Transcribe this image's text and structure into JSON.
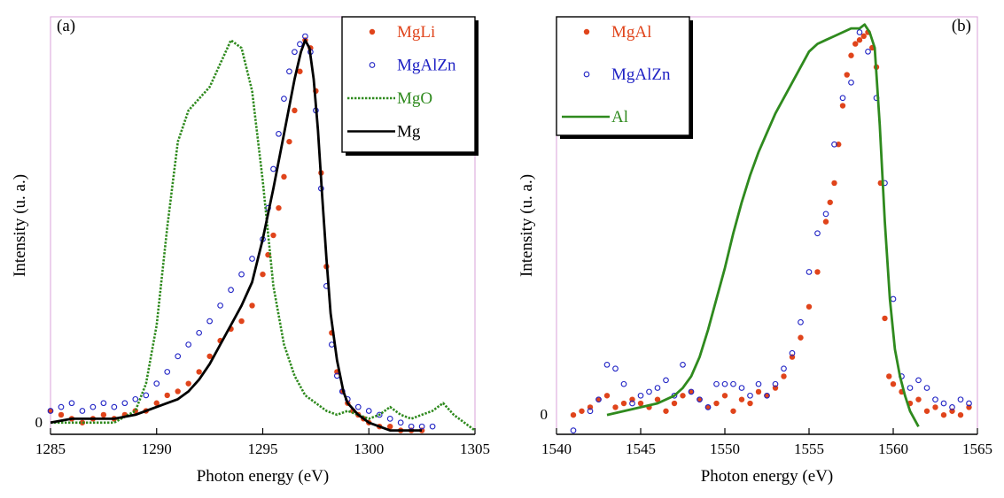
{
  "chart_data": [
    {
      "type": "scatter",
      "panel_label": "(a)",
      "xlabel": "Photon energy (eV)",
      "ylabel": "Intensity (u. a.)",
      "xlim": [
        1285,
        1305
      ],
      "ylim": [
        -0.03,
        1.04
      ],
      "x_ticks": [
        1285,
        1290,
        1295,
        1300,
        1305
      ],
      "x_tick_labels": [
        "1285",
        "1290",
        "1295",
        "1300",
        "1305"
      ],
      "y_ticks": [
        0
      ],
      "y_tick_labels": [
        "0"
      ],
      "legend_position": "top-right",
      "series": [
        {
          "name": "MgLi",
          "style": "filled-dots",
          "color": "#e0441b",
          "x": [
            1285.0,
            1285.5,
            1286.0,
            1286.5,
            1287.0,
            1287.5,
            1288.0,
            1288.5,
            1289.0,
            1289.5,
            1290.0,
            1290.5,
            1291.0,
            1291.5,
            1292.0,
            1292.5,
            1293.0,
            1293.5,
            1294.0,
            1294.5,
            1295.0,
            1295.25,
            1295.5,
            1295.75,
            1296.0,
            1296.25,
            1296.5,
            1296.75,
            1297.0,
            1297.25,
            1297.5,
            1297.75,
            1298.0,
            1298.25,
            1298.5,
            1298.75,
            1299.0,
            1299.25,
            1299.5,
            1299.75,
            1300.0,
            1300.5,
            1301.0,
            1301.5,
            1302.0,
            1302.5
          ],
          "y": [
            0.03,
            0.02,
            0.01,
            0.0,
            0.01,
            0.02,
            0.01,
            0.02,
            0.03,
            0.03,
            0.05,
            0.07,
            0.08,
            0.1,
            0.13,
            0.17,
            0.21,
            0.24,
            0.26,
            0.3,
            0.38,
            0.43,
            0.48,
            0.55,
            0.63,
            0.72,
            0.8,
            0.9,
            0.98,
            0.96,
            0.85,
            0.64,
            0.4,
            0.23,
            0.13,
            0.08,
            0.05,
            0.03,
            0.02,
            0.01,
            0.0,
            -0.01,
            -0.01,
            -0.02,
            -0.02,
            -0.02
          ]
        },
        {
          "name": "MgAlZn",
          "style": "open-circles",
          "color": "#1f22c4",
          "x": [
            1285.0,
            1285.5,
            1286.0,
            1286.5,
            1287.0,
            1287.5,
            1288.0,
            1288.5,
            1289.0,
            1289.5,
            1290.0,
            1290.5,
            1291.0,
            1291.5,
            1292.0,
            1292.5,
            1293.0,
            1293.5,
            1294.0,
            1294.5,
            1295.0,
            1295.25,
            1295.5,
            1295.75,
            1296.0,
            1296.25,
            1296.5,
            1296.75,
            1297.0,
            1297.25,
            1297.5,
            1297.75,
            1298.0,
            1298.25,
            1298.5,
            1298.75,
            1299.0,
            1299.5,
            1300.0,
            1300.5,
            1301.0,
            1301.5,
            1302.0,
            1302.5,
            1303.0
          ],
          "y": [
            0.03,
            0.04,
            0.05,
            0.03,
            0.04,
            0.05,
            0.04,
            0.05,
            0.06,
            0.07,
            0.1,
            0.13,
            0.17,
            0.2,
            0.23,
            0.26,
            0.3,
            0.34,
            0.38,
            0.42,
            0.47,
            0.55,
            0.65,
            0.74,
            0.83,
            0.9,
            0.95,
            0.97,
            0.99,
            0.95,
            0.8,
            0.6,
            0.35,
            0.2,
            0.12,
            0.08,
            0.06,
            0.04,
            0.03,
            0.02,
            0.01,
            0.0,
            -0.01,
            -0.01,
            -0.01
          ]
        },
        {
          "name": "MgO",
          "style": "dotted-line",
          "color": "#2f8a1e",
          "x": [
            1285.0,
            1286.0,
            1287.0,
            1288.0,
            1289.0,
            1289.5,
            1290.0,
            1290.5,
            1291.0,
            1291.5,
            1292.0,
            1292.5,
            1293.0,
            1293.5,
            1294.0,
            1294.5,
            1295.0,
            1295.5,
            1296.0,
            1296.5,
            1297.0,
            1297.5,
            1298.0,
            1298.5,
            1299.0,
            1299.5,
            1300.0,
            1300.5,
            1301.0,
            1301.5,
            1302.0,
            1302.5,
            1303.0,
            1303.5,
            1304.0,
            1304.5,
            1305.0
          ],
          "y": [
            0.0,
            0.0,
            0.0,
            0.0,
            0.03,
            0.1,
            0.25,
            0.5,
            0.72,
            0.8,
            0.83,
            0.86,
            0.92,
            0.98,
            0.96,
            0.85,
            0.62,
            0.35,
            0.2,
            0.12,
            0.07,
            0.05,
            0.03,
            0.02,
            0.03,
            0.02,
            0.01,
            0.02,
            0.04,
            0.02,
            0.01,
            0.02,
            0.03,
            0.05,
            0.02,
            0.0,
            -0.02
          ]
        },
        {
          "name": "Mg",
          "style": "solid-line",
          "color": "#000000",
          "x": [
            1285.0,
            1286.0,
            1287.0,
            1288.0,
            1289.0,
            1289.5,
            1290.0,
            1290.5,
            1291.0,
            1291.5,
            1292.0,
            1292.5,
            1293.0,
            1293.5,
            1294.0,
            1294.5,
            1295.0,
            1295.5,
            1296.0,
            1296.5,
            1296.8,
            1297.0,
            1297.2,
            1297.4,
            1297.6,
            1297.8,
            1298.0,
            1298.2,
            1298.5,
            1298.8,
            1299.0,
            1299.5,
            1300.0,
            1300.5,
            1301.0,
            1301.5,
            1302.0,
            1302.5
          ],
          "y": [
            0.0,
            0.01,
            0.01,
            0.01,
            0.02,
            0.03,
            0.04,
            0.05,
            0.06,
            0.08,
            0.11,
            0.15,
            0.2,
            0.25,
            0.3,
            0.36,
            0.47,
            0.6,
            0.74,
            0.88,
            0.95,
            0.98,
            0.96,
            0.88,
            0.75,
            0.58,
            0.42,
            0.28,
            0.16,
            0.08,
            0.05,
            0.02,
            0.0,
            -0.01,
            -0.02,
            -0.02,
            -0.02,
            -0.02
          ]
        }
      ]
    },
    {
      "type": "scatter",
      "panel_label": "(b)",
      "xlabel": "Photon energy (eV)",
      "ylabel": "Intensity (u. a.)",
      "xlim": [
        1540,
        1565
      ],
      "ylim": [
        -0.05,
        1.03
      ],
      "x_ticks": [
        1540,
        1545,
        1550,
        1555,
        1560,
        1565
      ],
      "x_tick_labels": [
        "1540",
        "1545",
        "1550",
        "1555",
        "1560",
        "1565"
      ],
      "y_ticks": [
        0
      ],
      "y_tick_labels": [
        "0"
      ],
      "legend_position": "top-left",
      "series": [
        {
          "name": "MgAl",
          "style": "filled-dots",
          "color": "#e0441b",
          "x": [
            1541.0,
            1541.5,
            1542.0,
            1542.5,
            1543.0,
            1543.5,
            1544.0,
            1544.5,
            1545.0,
            1545.5,
            1546.0,
            1546.5,
            1547.0,
            1547.5,
            1548.0,
            1548.5,
            1549.0,
            1549.5,
            1550.0,
            1550.5,
            1551.0,
            1551.5,
            1552.0,
            1552.5,
            1553.0,
            1553.5,
            1554.0,
            1554.5,
            1555.0,
            1555.5,
            1556.0,
            1556.25,
            1556.5,
            1556.75,
            1557.0,
            1557.25,
            1557.5,
            1557.75,
            1558.0,
            1558.25,
            1558.5,
            1558.75,
            1559.0,
            1559.25,
            1559.5,
            1559.75,
            1560.0,
            1560.5,
            1561.0,
            1561.5,
            1562.0,
            1562.5,
            1563.0,
            1563.5,
            1564.0,
            1564.5
          ],
          "y": [
            0.0,
            0.01,
            0.02,
            0.04,
            0.05,
            0.02,
            0.03,
            0.04,
            0.03,
            0.02,
            0.04,
            0.01,
            0.03,
            0.05,
            0.06,
            0.04,
            0.02,
            0.03,
            0.05,
            0.01,
            0.04,
            0.03,
            0.06,
            0.05,
            0.07,
            0.1,
            0.15,
            0.2,
            0.28,
            0.37,
            0.5,
            0.55,
            0.6,
            0.7,
            0.8,
            0.88,
            0.93,
            0.96,
            0.97,
            0.98,
            0.99,
            0.95,
            0.9,
            0.6,
            0.25,
            0.1,
            0.08,
            0.06,
            0.03,
            0.04,
            0.01,
            0.02,
            0.0,
            0.01,
            0.0,
            0.02
          ]
        },
        {
          "name": "MgAlZn",
          "style": "open-circles",
          "color": "#1f22c4",
          "x": [
            1541.0,
            1542.0,
            1542.5,
            1543.0,
            1543.5,
            1544.0,
            1544.5,
            1545.0,
            1545.5,
            1546.0,
            1546.5,
            1547.0,
            1547.5,
            1548.0,
            1548.5,
            1549.0,
            1549.5,
            1550.0,
            1550.5,
            1551.0,
            1551.5,
            1552.0,
            1552.5,
            1553.0,
            1553.5,
            1554.0,
            1554.5,
            1555.0,
            1555.5,
            1556.0,
            1556.5,
            1557.0,
            1557.5,
            1558.0,
            1558.5,
            1559.0,
            1559.5,
            1560.0,
            1560.5,
            1561.0,
            1561.5,
            1562.0,
            1562.5,
            1563.0,
            1563.5,
            1564.0,
            1564.5
          ],
          "y": [
            -0.04,
            0.01,
            0.04,
            0.13,
            0.12,
            0.08,
            0.03,
            0.05,
            0.06,
            0.07,
            0.09,
            0.05,
            0.13,
            0.06,
            0.04,
            0.02,
            0.08,
            0.08,
            0.08,
            0.07,
            0.05,
            0.08,
            0.05,
            0.08,
            0.12,
            0.16,
            0.24,
            0.37,
            0.47,
            0.52,
            0.7,
            0.82,
            0.86,
            0.99,
            0.94,
            0.82,
            0.6,
            0.3,
            0.1,
            0.07,
            0.09,
            0.07,
            0.04,
            0.03,
            0.02,
            0.04,
            0.03
          ]
        },
        {
          "name": "Al",
          "style": "solid-line",
          "color": "#2f8a1e",
          "x": [
            1543.0,
            1544.0,
            1545.0,
            1546.0,
            1547.0,
            1547.5,
            1548.0,
            1548.5,
            1549.0,
            1549.5,
            1550.0,
            1550.5,
            1551.0,
            1551.5,
            1552.0,
            1552.5,
            1553.0,
            1553.5,
            1554.0,
            1554.5,
            1555.0,
            1555.5,
            1556.0,
            1556.5,
            1557.0,
            1557.5,
            1558.0,
            1558.3,
            1558.6,
            1558.9,
            1559.2,
            1559.5,
            1559.8,
            1560.1,
            1560.4,
            1560.7,
            1561.0,
            1561.5
          ],
          "y": [
            0.0,
            0.01,
            0.02,
            0.03,
            0.05,
            0.07,
            0.1,
            0.15,
            0.22,
            0.3,
            0.38,
            0.47,
            0.55,
            0.62,
            0.68,
            0.73,
            0.78,
            0.82,
            0.86,
            0.9,
            0.94,
            0.96,
            0.97,
            0.98,
            0.99,
            1.0,
            1.0,
            1.01,
            0.99,
            0.95,
            0.75,
            0.5,
            0.3,
            0.17,
            0.1,
            0.05,
            0.01,
            -0.03
          ]
        }
      ]
    }
  ]
}
